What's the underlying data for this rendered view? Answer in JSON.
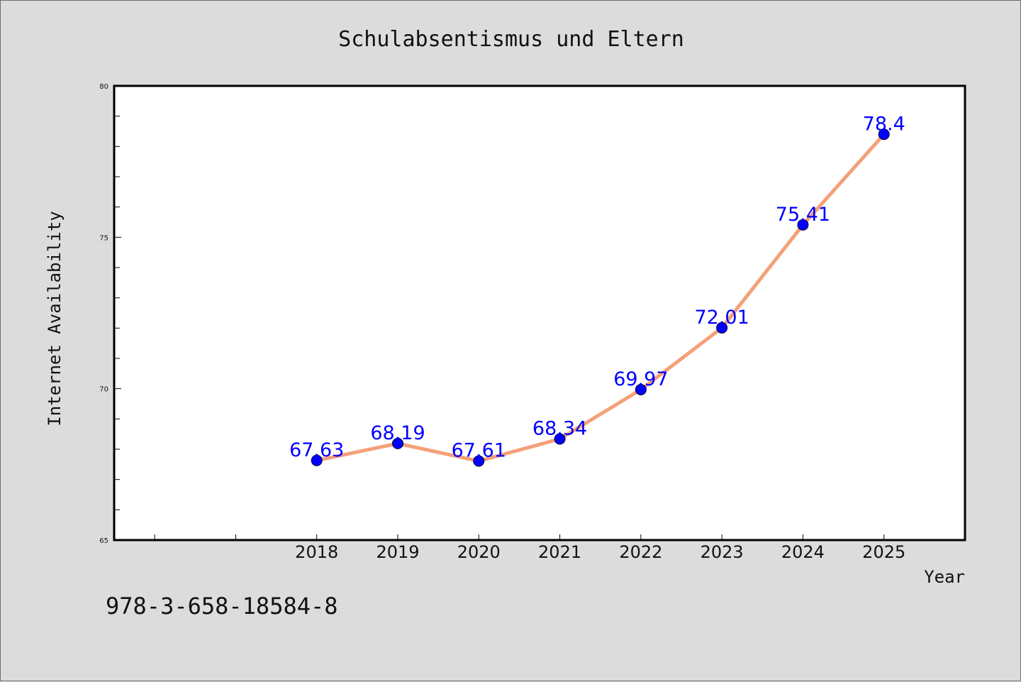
{
  "chart_data": {
    "type": "line",
    "title": "Schulabsentismus und Eltern",
    "xlabel": "Year",
    "ylabel": "Internet Availability",
    "x": [
      "2018",
      "2019",
      "2020",
      "2021",
      "2022",
      "2023",
      "2024",
      "2025"
    ],
    "series": [
      {
        "values": [
          67.63,
          68.19,
          67.61,
          68.34,
          69.97,
          72.01,
          75.41,
          78.4
        ],
        "labels": [
          "67.63",
          "68.19",
          "67.61",
          "68.34",
          "69.97",
          "72.01",
          "75.41",
          "78.4"
        ],
        "line_color": "#f4a07a",
        "marker_color": "#0000ff"
      }
    ],
    "ylim": [
      65,
      80
    ],
    "y_ticks": [
      "65",
      "70",
      "75",
      "80"
    ],
    "x_minor_ticks": 2,
    "grid": false,
    "legend": "none"
  },
  "footnote": "978-3-658-18584-8",
  "colors": {
    "background": "#dcdcdc",
    "plot_background": "#ffffff",
    "line": "#f4a07a",
    "marker": "#0000ff",
    "data_label": "#0000ff"
  }
}
